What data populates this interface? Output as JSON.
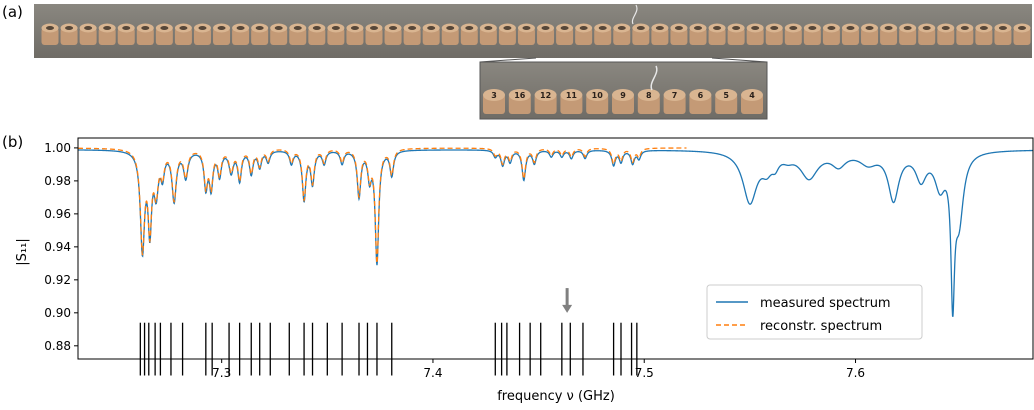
{
  "panels": {
    "a_label": "(a)",
    "b_label": "(b)"
  },
  "photo": {
    "strip_puck_count": 52,
    "inset_labels": [
      "3",
      "16",
      "12",
      "11",
      "10",
      "9",
      "8",
      "7",
      "6",
      "5",
      "4"
    ],
    "colors": {
      "background": "#7d7a74",
      "puck": "#c49a76",
      "puck_top": "#d9b591",
      "ink": "#2a211b",
      "inset_frame": "#555555"
    }
  },
  "chart_data": {
    "type": "line",
    "xlabel": "frequency ν (GHz)",
    "ylabel": "|S₁₁|",
    "xlim": [
      7.232,
      7.684
    ],
    "ylim": [
      0.872,
      1.006
    ],
    "xticks": [
      7.3,
      7.4,
      7.5,
      7.6
    ],
    "xtick_labels": [
      "7.3",
      "7.4",
      "7.5",
      "7.6"
    ],
    "yticks": [
      0.88,
      0.9,
      0.92,
      0.94,
      0.96,
      0.98,
      1.0
    ],
    "ytick_labels": [
      "0.88",
      "0.90",
      "0.92",
      "0.94",
      "0.96",
      "0.98",
      "1.00"
    ],
    "legend_position": "lower-right",
    "series": [
      {
        "name": "measured spectrum",
        "style": "solid",
        "color": "#1f77b4",
        "x_range": [
          7.232,
          7.684
        ],
        "baseline": 0.999,
        "dips": [
          [
            7.2625,
            0.06,
            0.0012
          ],
          [
            7.266,
            0.046,
            0.001
          ],
          [
            7.269,
            0.024,
            0.0012
          ],
          [
            7.272,
            0.014,
            0.001
          ],
          [
            7.2775,
            0.03,
            0.0012
          ],
          [
            7.283,
            0.016,
            0.0012
          ],
          [
            7.2925,
            0.022,
            0.001
          ],
          [
            7.295,
            0.022,
            0.001
          ],
          [
            7.299,
            0.015,
            0.001
          ],
          [
            7.3045,
            0.013,
            0.0012
          ],
          [
            7.3085,
            0.018,
            0.001
          ],
          [
            7.314,
            0.014,
            0.001
          ],
          [
            7.318,
            0.01,
            0.001
          ],
          [
            7.322,
            0.007,
            0.001
          ],
          [
            7.333,
            0.008,
            0.001
          ],
          [
            7.339,
            0.03,
            0.001
          ],
          [
            7.343,
            0.02,
            0.001
          ],
          [
            7.3485,
            0.008,
            0.001
          ],
          [
            7.357,
            0.008,
            0.001
          ],
          [
            7.365,
            0.028,
            0.001
          ],
          [
            7.37,
            0.016,
            0.001
          ],
          [
            7.3735,
            0.068,
            0.001
          ],
          [
            7.3805,
            0.015,
            0.001
          ],
          [
            7.4295,
            0.004,
            0.001
          ],
          [
            7.433,
            0.009,
            0.001
          ],
          [
            7.4365,
            0.007,
            0.001
          ],
          [
            7.443,
            0.018,
            0.001
          ],
          [
            7.448,
            0.008,
            0.001
          ],
          [
            7.456,
            0.004,
            0.001
          ],
          [
            7.461,
            0.004,
            0.001
          ],
          [
            7.4655,
            0.005,
            0.001
          ],
          [
            7.472,
            0.005,
            0.001
          ],
          [
            7.4855,
            0.009,
            0.001
          ],
          [
            7.489,
            0.007,
            0.001
          ],
          [
            7.4945,
            0.008,
            0.001
          ],
          [
            7.4975,
            0.005,
            0.001
          ],
          [
            7.55,
            0.031,
            0.004
          ],
          [
            7.558,
            0.009,
            0.003
          ],
          [
            7.562,
            0.006,
            0.002
          ],
          [
            7.568,
            0.003,
            0.003
          ],
          [
            7.578,
            0.016,
            0.005
          ],
          [
            7.592,
            0.008,
            0.004
          ],
          [
            7.606,
            0.007,
            0.005
          ],
          [
            7.618,
            0.029,
            0.003
          ],
          [
            7.631,
            0.016,
            0.003
          ],
          [
            7.64,
            0.02,
            0.003
          ],
          [
            7.646,
            0.08,
            0.001
          ],
          [
            7.649,
            0.04,
            0.0025
          ]
        ]
      },
      {
        "name": "reconstr. spectrum",
        "style": "dashed",
        "color": "#ff7f0e",
        "x_range": [
          7.232,
          7.52
        ],
        "baseline": 1.0,
        "dips_same_as": "measured spectrum",
        "dips_below": 7.5
      }
    ],
    "mode_markers": {
      "y_range": [
        0.862,
        0.894
      ],
      "x": [
        7.2615,
        7.2635,
        7.2655,
        7.2685,
        7.271,
        7.276,
        7.2815,
        7.2925,
        7.2955,
        7.3035,
        7.3085,
        7.314,
        7.318,
        7.323,
        7.332,
        7.339,
        7.343,
        7.35,
        7.357,
        7.365,
        7.369,
        7.3735,
        7.3805,
        7.4295,
        7.4325,
        7.435,
        7.441,
        7.446,
        7.451,
        7.461,
        7.465,
        7.471,
        7.4855,
        7.489,
        7.494,
        7.4965
      ]
    },
    "arrow": {
      "x": 7.4635,
      "y_from": 0.915,
      "y_to": 0.9,
      "color": "#808080"
    }
  }
}
